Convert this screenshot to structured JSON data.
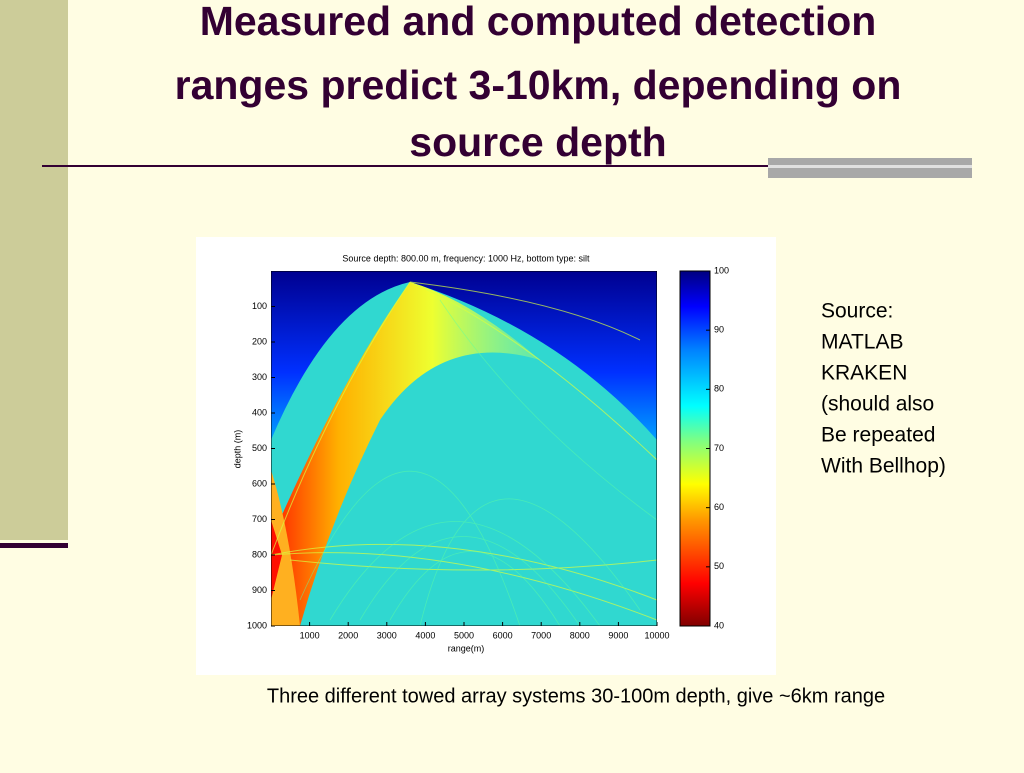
{
  "slide": {
    "title_lines": [
      "Measured and computed detection",
      "ranges predict 3-10km, depending on",
      "source depth"
    ],
    "figure": {
      "title": "Source depth: 800.00 m, frequency: 1000 Hz, bottom type: silt",
      "xlabel": "range(m)",
      "ylabel": "depth (m)",
      "xticks": [
        1000,
        2000,
        3000,
        4000,
        5000,
        6000,
        7000,
        8000,
        9000,
        10000
      ],
      "yticks": [
        100,
        200,
        300,
        400,
        500,
        600,
        700,
        800,
        900,
        1000
      ],
      "colorbar_ticks": [
        40,
        50,
        60,
        70,
        80,
        90,
        100
      ]
    },
    "note_lines": [
      "Source:",
      "MATLAB",
      "KRAKEN",
      "(should also",
      "Be repeated",
      "With Bellhop)"
    ],
    "caption": "Three different towed array systems 30-100m depth, give ~6km range"
  }
}
